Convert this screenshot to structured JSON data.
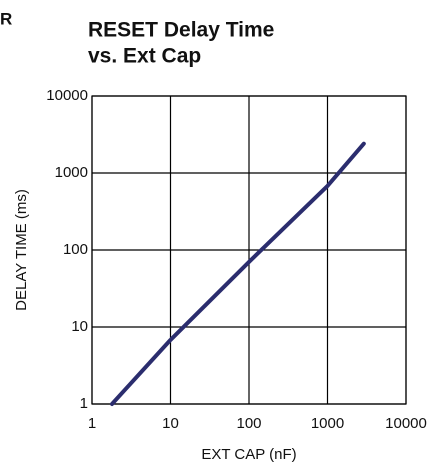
{
  "chart_data": {
    "type": "line",
    "log_x": true,
    "log_y": true,
    "annotation": "R",
    "title": "RESET Delay Time",
    "subtitle": "vs. Ext Cap",
    "x_label": "EXT CAP (nF)",
    "y_label": "DELAY TIME (ms)",
    "x": [
      1.8,
      10,
      100,
      1000,
      2900
    ],
    "values": [
      1,
      6.8,
      70,
      680,
      2400
    ],
    "color": "#2b2d6e",
    "xlim": [
      1,
      10000
    ],
    "xticks": [
      1,
      10,
      100,
      1000,
      10000
    ],
    "ylim": [
      1,
      10000
    ],
    "yticks": [
      1,
      10,
      100,
      1000,
      10000
    ],
    "grid": true
  }
}
